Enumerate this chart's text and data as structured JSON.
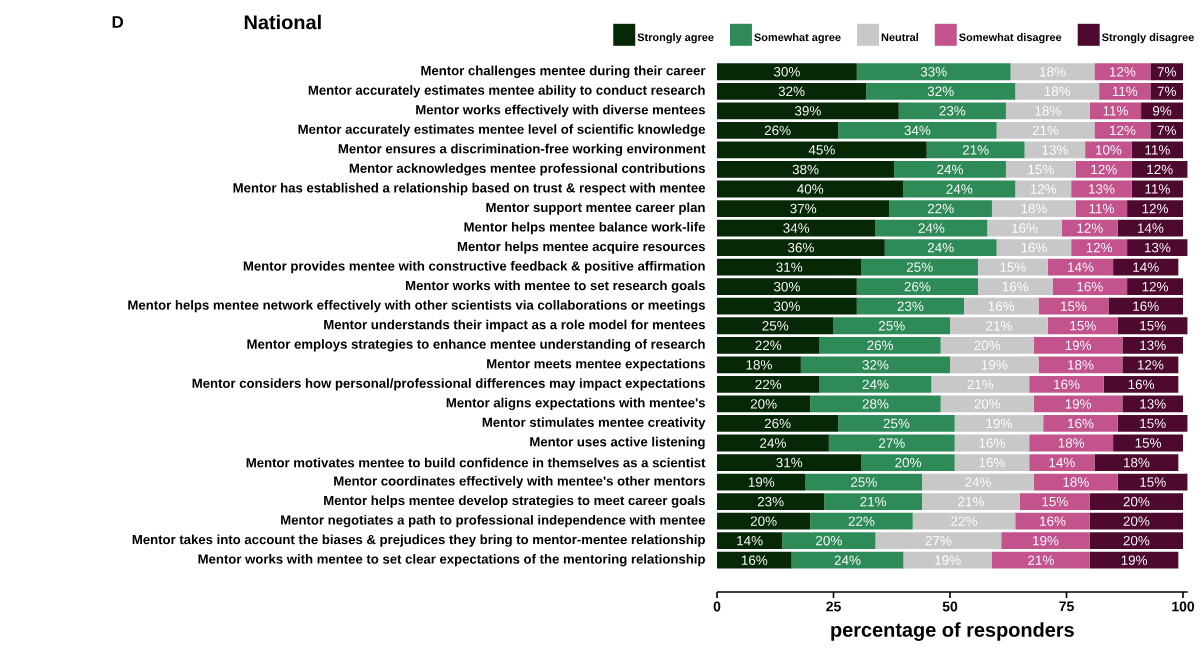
{
  "chart_data": {
    "type": "bar",
    "orientation": "horizontal",
    "stacked": true,
    "title": "National",
    "annotations": [
      "D"
    ],
    "xlabel": "percentage of responders",
    "categories": [
      "Mentor challenges mentee during their career",
      "Mentor accurately estimates mentee ability to conduct research",
      "Mentor works effectively with diverse mentees",
      "Mentor accurately estimates mentee level of scientific knowledge",
      "Mentor ensures a discrimination-free working environment",
      "Mentor acknowledges mentee professional contributions",
      "Mentor has established a relationship based on trust & respect with mentee",
      "Mentor support mentee career plan",
      "Mentor helps mentee balance work-life",
      "Mentor helps mentee acquire resources",
      "Mentor provides mentee with constructive feedback & positive affirmation",
      "Mentor works with mentee to set research goals",
      "Mentor helps mentee network effectively with other scientists via collaborations or meetings",
      "Mentor understands their impact as a role model for mentees",
      "Mentor employs strategies to enhance mentee understanding of research",
      "Mentor meets mentee expectations",
      "Mentor considers how personal/professional differences may impact expectations",
      "Mentor aligns expectations with mentee's",
      "Mentor stimulates mentee creativity",
      "Mentor uses active listening",
      "Mentor motivates mentee to build confidence in themselves as a scientist",
      "Mentor coordinates effectively with mentee's other mentors",
      "Mentor helps mentee develop strategies to meet career goals",
      "Mentor negotiates a path to professional independence with mentee",
      "Mentor takes into account the biases & prejudices they bring to mentor-mentee relationship",
      "Mentor works with mentee to set clear expectations of the mentoring relationship"
    ],
    "series": [
      {
        "name": "Strongly agree",
        "color": "#062806",
        "values": [
          30,
          32,
          39,
          26,
          45,
          38,
          40,
          37,
          34,
          36,
          31,
          30,
          30,
          25,
          22,
          18,
          22,
          20,
          26,
          24,
          31,
          19,
          23,
          20,
          14,
          16
        ],
        "value_labels": [
          "30%",
          "32%",
          "39%",
          "26%",
          "45%",
          "38%",
          "40%",
          "37%",
          "34%",
          "36%",
          "31%",
          "30%",
          "30%",
          "25%",
          "22%",
          "18%",
          "22%",
          "20%",
          "26%",
          "24%",
          "31%",
          "19%",
          "23%",
          "20%",
          "14%",
          "16%"
        ]
      },
      {
        "name": "Somewhat agree",
        "color": "#2e8b57",
        "values": [
          33,
          32,
          23,
          34,
          21,
          24,
          24,
          22,
          24,
          24,
          25,
          26,
          23,
          25,
          26,
          32,
          24,
          28,
          25,
          27,
          20,
          25,
          21,
          22,
          20,
          24
        ],
        "value_labels": [
          "33%",
          "32%",
          "23%",
          "34%",
          "21%",
          "24%",
          "24%",
          "22%",
          "24%",
          "24%",
          "25%",
          "26%",
          "23%",
          "25%",
          "26%",
          "32%",
          "24%",
          "28%",
          "25%",
          "27%",
          "20%",
          "25%",
          "21%",
          "22%",
          "20%",
          "24%"
        ]
      },
      {
        "name": "Neutral",
        "color": "#c8c8c8",
        "values": [
          18,
          18,
          18,
          21,
          13,
          15,
          12,
          18,
          16,
          16,
          15,
          16,
          16,
          21,
          20,
          19,
          21,
          20,
          19,
          16,
          16,
          24,
          21,
          22,
          27,
          19
        ],
        "value_labels": [
          "18%",
          "18%",
          "18%",
          "21%",
          "13%",
          "15%",
          "12%",
          "18%",
          "16%",
          "16%",
          "15%",
          "16%",
          "16%",
          "21%",
          "20%",
          "19%",
          "21%",
          "20%",
          "19%",
          "16%",
          "16%",
          "24%",
          "21%",
          "22%",
          "27%",
          "19%"
        ]
      },
      {
        "name": "Somewhat disagree",
        "color": "#c2538c",
        "values": [
          12,
          11,
          11,
          12,
          10,
          12,
          13,
          11,
          12,
          12,
          14,
          16,
          15,
          15,
          19,
          18,
          16,
          19,
          16,
          18,
          14,
          18,
          15,
          16,
          19,
          21
        ],
        "value_labels": [
          "12%",
          "11%",
          "11%",
          "12%",
          "10%",
          "12%",
          "13%",
          "11%",
          "12%",
          "12%",
          "14%",
          "16%",
          "15%",
          "15%",
          "19%",
          "18%",
          "16%",
          "19%",
          "16%",
          "18%",
          "14%",
          "18%",
          "15%",
          "16%",
          "19%",
          "21%"
        ]
      },
      {
        "name": "Strongly disagree",
        "color": "#4d0a2e",
        "values": [
          7,
          7,
          9,
          7,
          11,
          12,
          11,
          12,
          14,
          13,
          14,
          12,
          16,
          15,
          13,
          12,
          16,
          13,
          15,
          15,
          18,
          15,
          20,
          20,
          20,
          19
        ],
        "value_labels": [
          "7%",
          "7%",
          "9%",
          "7%",
          "11%",
          "12%",
          "11%",
          "12%",
          "14%",
          "13%",
          "14%",
          "12%",
          "16%",
          "15%",
          "13%",
          "12%",
          "16%",
          "13%",
          "15%",
          "15%",
          "18%",
          "15%",
          "20%",
          "20%",
          "20%",
          "19%"
        ]
      }
    ],
    "xlim": [
      0,
      101
    ],
    "xticks": [
      0,
      25,
      50,
      75,
      100
    ],
    "grid": false,
    "legend": "top"
  }
}
